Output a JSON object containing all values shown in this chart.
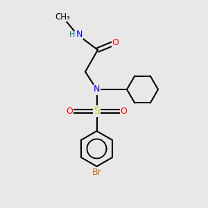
{
  "bg_color": "#e8e8e8",
  "bond_color": "#000000",
  "bond_lw": 1.5,
  "atom_colors": {
    "N": "#0000ff",
    "O": "#ff0000",
    "S": "#cccc00",
    "Br": "#cc6600",
    "H": "#008080",
    "C": "#000000"
  },
  "font_size": 9,
  "fig_size": [
    3.0,
    3.0
  ],
  "dpi": 100
}
